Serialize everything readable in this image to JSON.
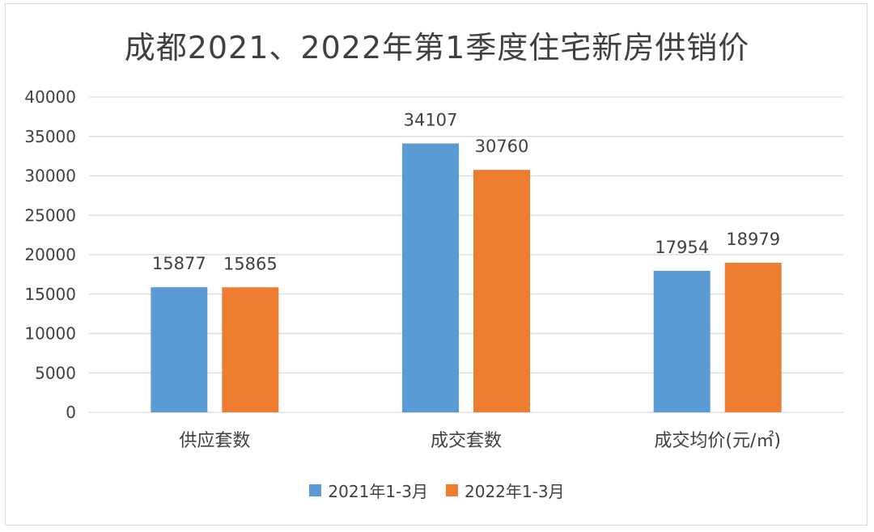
{
  "chart_data": {
    "type": "bar",
    "title": "成都2021、2022年第1季度住宅新房供销价",
    "categories": [
      "供应套数",
      "成交套数",
      "成交均价(元/㎡)"
    ],
    "series": [
      {
        "name": "2021年1-3月",
        "values": [
          15877,
          34107,
          17954
        ],
        "color": "#5b9bd5"
      },
      {
        "name": "2022年1-3月",
        "values": [
          15865,
          30760,
          18979
        ],
        "color": "#ed7d31"
      }
    ],
    "ylim": [
      0,
      40000
    ],
    "yticks": [
      0,
      5000,
      10000,
      15000,
      20000,
      25000,
      30000,
      35000,
      40000
    ],
    "xlabel": "",
    "ylabel": "",
    "grid": true,
    "legend": "bottom"
  }
}
